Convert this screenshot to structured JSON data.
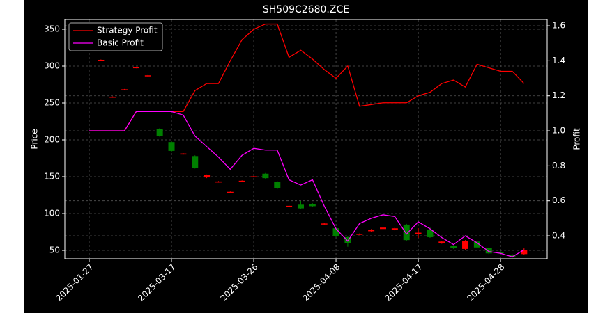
{
  "chart_data": {
    "type": "candlestick",
    "title": "SH509C2680.ZCE",
    "ylabel": "Price",
    "y2label": "Profit",
    "categories": [
      "2025-01-27",
      null,
      null,
      null,
      null,
      null,
      null,
      "2025-03-17",
      null,
      null,
      null,
      null,
      null,
      null,
      "2025-03-26",
      null,
      null,
      null,
      null,
      null,
      null,
      "2025-04-08",
      null,
      null,
      null,
      null,
      null,
      null,
      "2025-04-17",
      null,
      null,
      null,
      null,
      null,
      null,
      "2025-04-28",
      null,
      null
    ],
    "open": [
      null,
      307.5,
      257.5,
      267.5,
      297.5,
      286.5,
      215,
      197,
      180.5,
      178,
      149,
      142.5,
      128.5,
      143.5,
      149.5,
      154,
      143,
      109.5,
      112,
      113,
      85.5,
      80,
      68,
      71.5,
      76,
      79,
      78,
      85,
      72,
      78,
      59.5,
      56,
      52,
      62,
      53,
      48,
      44,
      45
    ],
    "high": [
      null,
      309,
      259,
      269,
      299,
      288,
      216,
      198,
      182,
      179,
      153,
      144,
      130,
      145,
      151,
      155,
      144,
      111,
      117,
      114,
      87,
      81,
      69,
      73,
      79,
      82,
      81,
      86,
      80,
      82,
      63,
      57,
      64,
      63,
      54,
      49,
      45,
      53
    ],
    "low": [
      null,
      307,
      257,
      267,
      297,
      286,
      204,
      184,
      180,
      161,
      148,
      142,
      128,
      143,
      149,
      147,
      133,
      109,
      106,
      109,
      85,
      68,
      55,
      71,
      75,
      78,
      77,
      63,
      67,
      67,
      59,
      52,
      51,
      53,
      45,
      45,
      40,
      44
    ],
    "close": [
      null,
      308.5,
      258.5,
      268.5,
      298.5,
      287.5,
      205,
      185,
      181.5,
      162,
      152,
      143.5,
      129.5,
      144.5,
      150.5,
      148,
      134,
      110.5,
      107,
      110,
      86.5,
      69,
      60,
      72.5,
      78,
      81,
      80,
      64,
      74,
      68,
      62,
      53,
      63,
      54,
      46,
      46,
      41,
      50
    ],
    "up_color": "#ff0000",
    "down_color": "#008000",
    "series": [
      {
        "name": "Strategy Profit",
        "color": "#ff0000",
        "axis": "y2",
        "values": [
          1.0,
          1.0,
          1.0,
          1.0,
          1.11,
          1.11,
          1.11,
          1.11,
          1.11,
          1.23,
          1.27,
          1.27,
          1.4,
          1.52,
          1.58,
          1.61,
          1.61,
          1.42,
          1.46,
          1.41,
          1.35,
          1.3,
          1.37,
          1.14,
          1.15,
          1.16,
          1.16,
          1.16,
          1.2,
          1.22,
          1.27,
          1.29,
          1.25,
          1.38,
          1.36,
          1.34,
          1.34,
          1.27
        ]
      },
      {
        "name": "Basic Profit",
        "color": "#ff00ff",
        "axis": "y2",
        "values": [
          1.0,
          1.0,
          1.0,
          1.0,
          1.11,
          1.11,
          1.11,
          1.11,
          1.09,
          0.97,
          0.91,
          0.85,
          0.78,
          0.86,
          0.9,
          0.89,
          0.89,
          0.72,
          0.69,
          0.72,
          0.57,
          0.44,
          0.37,
          0.47,
          0.5,
          0.52,
          0.51,
          0.41,
          0.48,
          0.44,
          0.39,
          0.35,
          0.4,
          0.36,
          0.31,
          0.3,
          0.28,
          0.32
        ]
      }
    ],
    "ylim": [
      38.7,
      363.2
    ],
    "yticks": [
      50,
      100,
      150,
      200,
      250,
      300,
      350
    ],
    "y2lim": [
      0.269,
      1.636
    ],
    "y2ticks": [
      0.4,
      0.6,
      0.8,
      {
        "value": 1,
        "label": "1.0"
      },
      1.2,
      1.4,
      1.6
    ],
    "grid": true,
    "legend": "upper left"
  }
}
